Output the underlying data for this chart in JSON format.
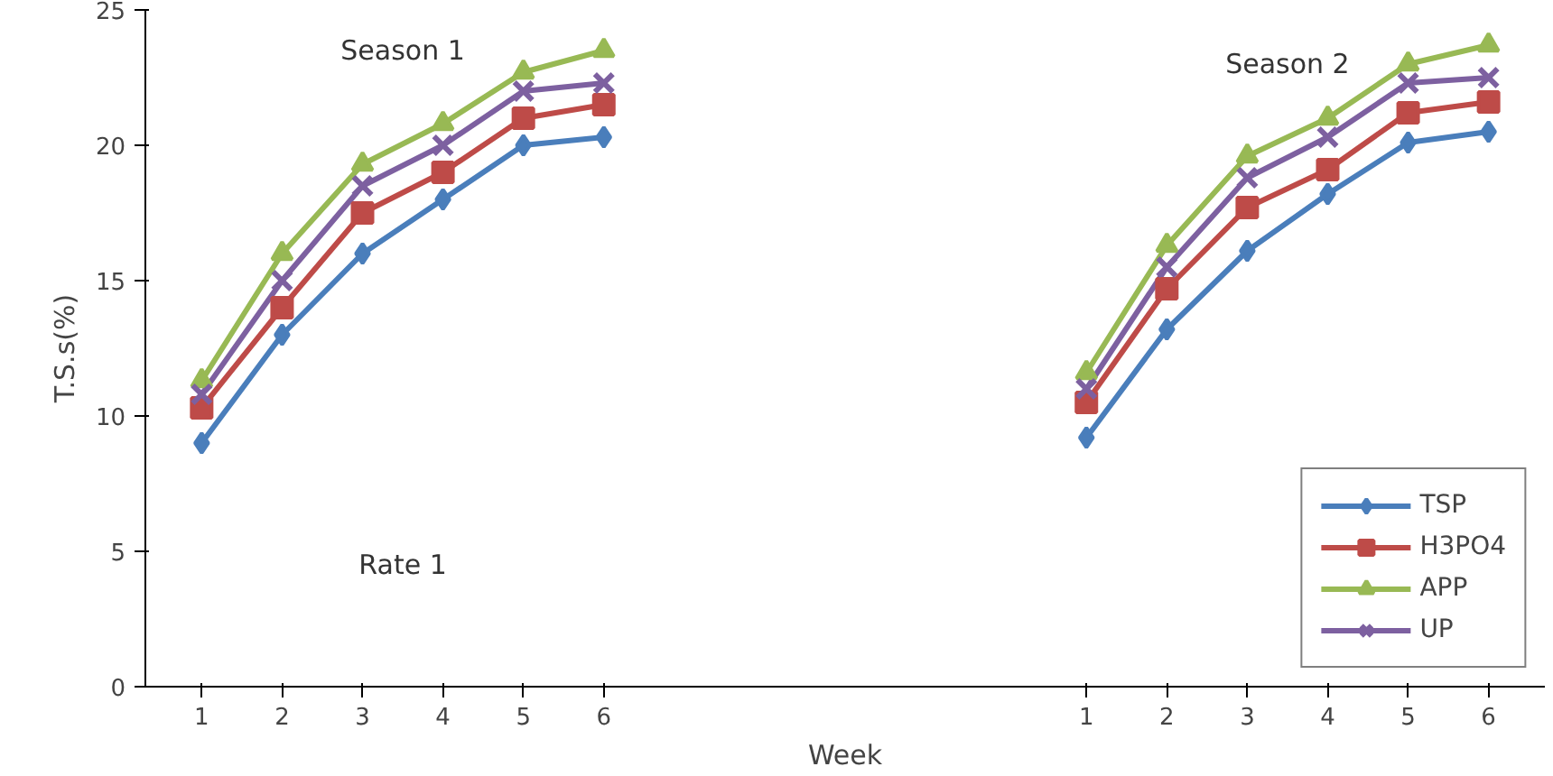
{
  "chart_data": {
    "type": "line",
    "xlabel": "Week",
    "ylabel": "T.S.s(%)",
    "categories": [
      "1",
      "2",
      "3",
      "4",
      "5",
      "6",
      null,
      null,
      null,
      null,
      null,
      "1",
      "2",
      "3",
      "4",
      "5",
      "6"
    ],
    "series": [
      {
        "name": "TSP",
        "color": "#4a7ebb",
        "marker": "diamond",
        "values": [
          9,
          13,
          16,
          18,
          20,
          20.3,
          null,
          null,
          null,
          null,
          null,
          9.2,
          13.2,
          16.1,
          18.2,
          20.1,
          20.5
        ]
      },
      {
        "name": "H3PO4",
        "color": "#be4b48",
        "marker": "square",
        "values": [
          10.3,
          14,
          17.5,
          19,
          21,
          21.5,
          null,
          null,
          null,
          null,
          null,
          10.5,
          14.7,
          17.7,
          19.1,
          21.2,
          21.6
        ]
      },
      {
        "name": "APP",
        "color": "#98b954",
        "marker": "triangle",
        "values": [
          11.3,
          16,
          19.3,
          20.8,
          22.7,
          23.5,
          null,
          null,
          null,
          null,
          null,
          11.6,
          16.3,
          19.6,
          21,
          23,
          23.7
        ]
      },
      {
        "name": "UP",
        "color": "#7d60a0",
        "marker": "x",
        "values": [
          10.8,
          15,
          18.5,
          20,
          22,
          22.3,
          null,
          null,
          null,
          null,
          null,
          11,
          15.5,
          18.8,
          20.3,
          22.3,
          22.5
        ]
      }
    ],
    "ylim": [
      0,
      25
    ],
    "yticks": [
      0,
      5,
      10,
      15,
      20,
      25
    ],
    "grid": false,
    "legend": "bottom right",
    "annotations": [
      "Season 1",
      "Season 2",
      "Rate 1"
    ]
  }
}
